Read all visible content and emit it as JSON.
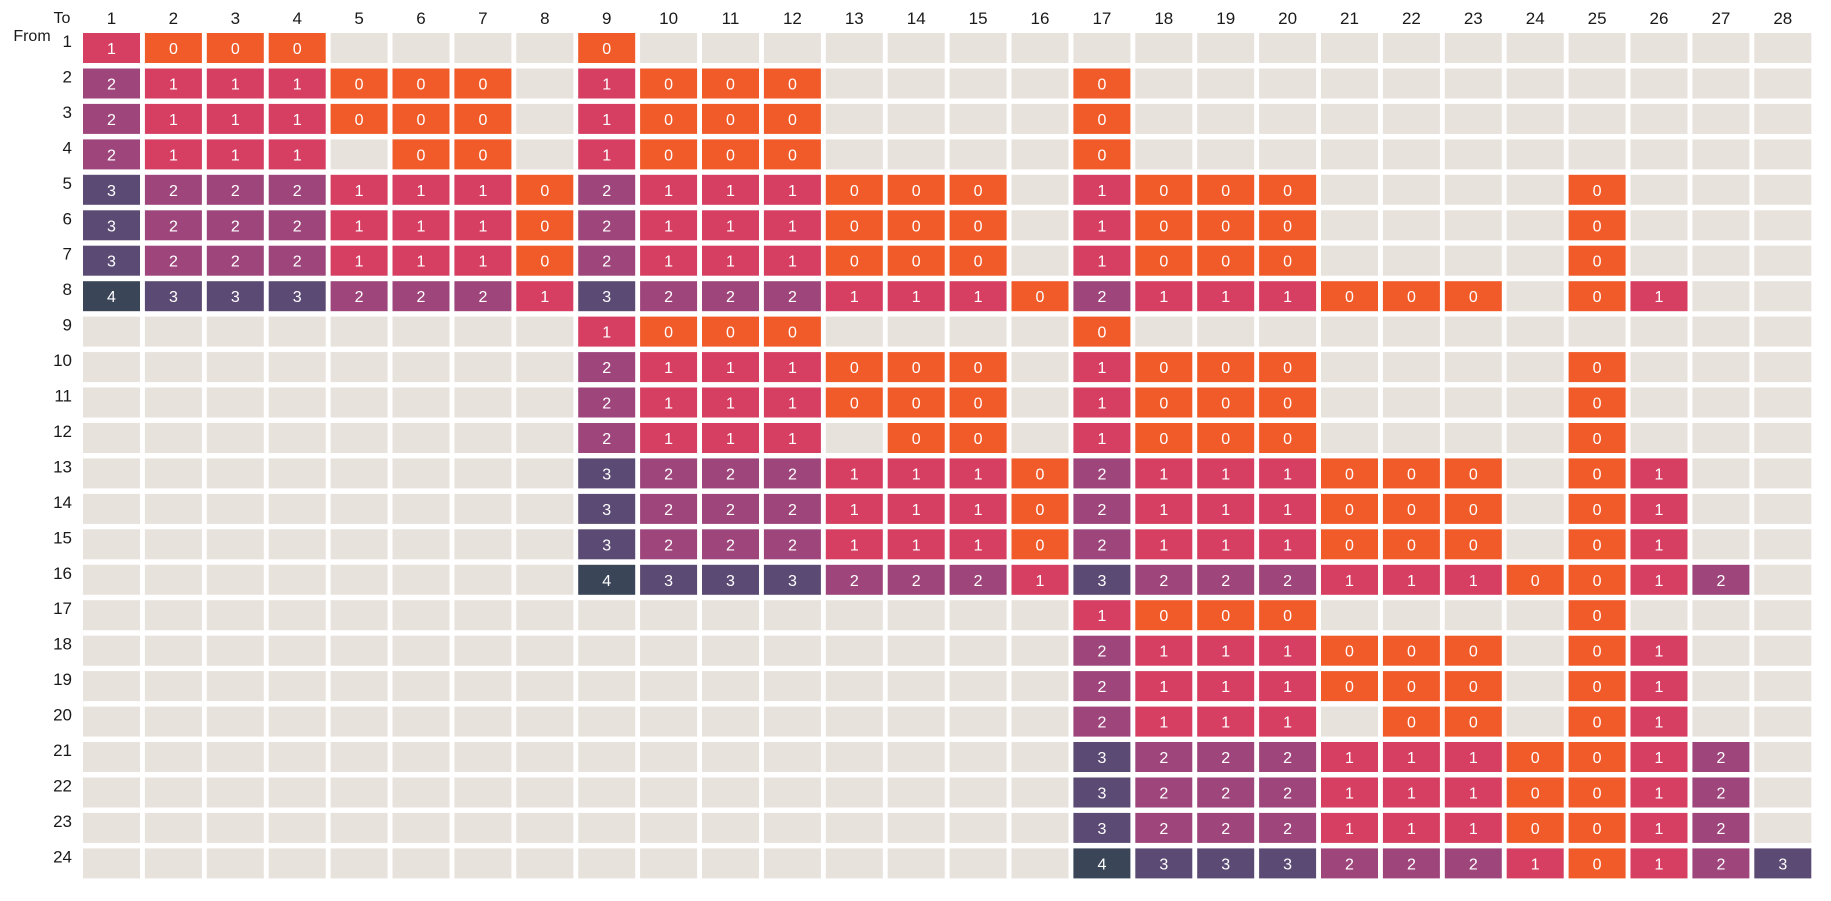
{
  "chart_data": {
    "type": "heatmap",
    "corner_labels": {
      "to": "To",
      "from": "From"
    },
    "x_labels": [
      "1",
      "2",
      "3",
      "4",
      "5",
      "6",
      "7",
      "8",
      "9",
      "10",
      "11",
      "12",
      "13",
      "14",
      "15",
      "16",
      "17",
      "18",
      "19",
      "20",
      "21",
      "22",
      "23",
      "24",
      "25",
      "26",
      "27",
      "28"
    ],
    "y_labels": [
      "1",
      "2",
      "3",
      "4",
      "5",
      "6",
      "7",
      "8",
      "9",
      "10",
      "11",
      "12",
      "13",
      "14",
      "15",
      "16",
      "17",
      "18",
      "19",
      "20",
      "21",
      "22",
      "23",
      "24"
    ],
    "empty_color": "#e8e2dc",
    "value_colors": {
      "0": "#f15a29",
      "1": "#d63e62",
      "2": "#9e467c",
      "3": "#5b4a73",
      "4": "#3a4558"
    },
    "values": [
      [
        1,
        0,
        0,
        0,
        null,
        null,
        null,
        null,
        0,
        null,
        null,
        null,
        null,
        null,
        null,
        null,
        null,
        null,
        null,
        null,
        null,
        null,
        null,
        null,
        null,
        null,
        null,
        null
      ],
      [
        2,
        1,
        1,
        1,
        0,
        0,
        0,
        null,
        1,
        0,
        0,
        0,
        null,
        null,
        null,
        null,
        0,
        null,
        null,
        null,
        null,
        null,
        null,
        null,
        null,
        null,
        null,
        null
      ],
      [
        2,
        1,
        1,
        1,
        0,
        0,
        0,
        null,
        1,
        0,
        0,
        0,
        null,
        null,
        null,
        null,
        0,
        null,
        null,
        null,
        null,
        null,
        null,
        null,
        null,
        null,
        null,
        null
      ],
      [
        2,
        1,
        1,
        1,
        null,
        0,
        0,
        null,
        1,
        0,
        0,
        0,
        null,
        null,
        null,
        null,
        0,
        null,
        null,
        null,
        null,
        null,
        null,
        null,
        null,
        null,
        null,
        null
      ],
      [
        3,
        2,
        2,
        2,
        1,
        1,
        1,
        0,
        2,
        1,
        1,
        1,
        0,
        0,
        0,
        null,
        1,
        0,
        0,
        0,
        null,
        null,
        null,
        null,
        0,
        null,
        null,
        null
      ],
      [
        3,
        2,
        2,
        2,
        1,
        1,
        1,
        0,
        2,
        1,
        1,
        1,
        0,
        0,
        0,
        null,
        1,
        0,
        0,
        0,
        null,
        null,
        null,
        null,
        0,
        null,
        null,
        null
      ],
      [
        3,
        2,
        2,
        2,
        1,
        1,
        1,
        0,
        2,
        1,
        1,
        1,
        0,
        0,
        0,
        null,
        1,
        0,
        0,
        0,
        null,
        null,
        null,
        null,
        0,
        null,
        null,
        null
      ],
      [
        4,
        3,
        3,
        3,
        2,
        2,
        2,
        1,
        3,
        2,
        2,
        2,
        1,
        1,
        1,
        0,
        2,
        1,
        1,
        1,
        0,
        0,
        0,
        null,
        0,
        1,
        null,
        null
      ],
      [
        null,
        null,
        null,
        null,
        null,
        null,
        null,
        null,
        1,
        0,
        0,
        0,
        null,
        null,
        null,
        null,
        0,
        null,
        null,
        null,
        null,
        null,
        null,
        null,
        null,
        null,
        null,
        null
      ],
      [
        null,
        null,
        null,
        null,
        null,
        null,
        null,
        null,
        2,
        1,
        1,
        1,
        0,
        0,
        0,
        null,
        1,
        0,
        0,
        0,
        null,
        null,
        null,
        null,
        0,
        null,
        null,
        null
      ],
      [
        null,
        null,
        null,
        null,
        null,
        null,
        null,
        null,
        2,
        1,
        1,
        1,
        0,
        0,
        0,
        null,
        1,
        0,
        0,
        0,
        null,
        null,
        null,
        null,
        0,
        null,
        null,
        null
      ],
      [
        null,
        null,
        null,
        null,
        null,
        null,
        null,
        null,
        2,
        1,
        1,
        1,
        null,
        0,
        0,
        null,
        1,
        0,
        0,
        0,
        null,
        null,
        null,
        null,
        0,
        null,
        null,
        null
      ],
      [
        null,
        null,
        null,
        null,
        null,
        null,
        null,
        null,
        3,
        2,
        2,
        2,
        1,
        1,
        1,
        0,
        2,
        1,
        1,
        1,
        0,
        0,
        0,
        null,
        0,
        1,
        null,
        null
      ],
      [
        null,
        null,
        null,
        null,
        null,
        null,
        null,
        null,
        3,
        2,
        2,
        2,
        1,
        1,
        1,
        0,
        2,
        1,
        1,
        1,
        0,
        0,
        0,
        null,
        0,
        1,
        null,
        null
      ],
      [
        null,
        null,
        null,
        null,
        null,
        null,
        null,
        null,
        3,
        2,
        2,
        2,
        1,
        1,
        1,
        0,
        2,
        1,
        1,
        1,
        0,
        0,
        0,
        null,
        0,
        1,
        null,
        null
      ],
      [
        null,
        null,
        null,
        null,
        null,
        null,
        null,
        null,
        4,
        3,
        3,
        3,
        2,
        2,
        2,
        1,
        3,
        2,
        2,
        2,
        1,
        1,
        1,
        0,
        0,
        1,
        2,
        null
      ],
      [
        null,
        null,
        null,
        null,
        null,
        null,
        null,
        null,
        null,
        null,
        null,
        null,
        null,
        null,
        null,
        null,
        1,
        0,
        0,
        0,
        null,
        null,
        null,
        null,
        0,
        null,
        null,
        null
      ],
      [
        null,
        null,
        null,
        null,
        null,
        null,
        null,
        null,
        null,
        null,
        null,
        null,
        null,
        null,
        null,
        null,
        2,
        1,
        1,
        1,
        0,
        0,
        0,
        null,
        0,
        1,
        null,
        null
      ],
      [
        null,
        null,
        null,
        null,
        null,
        null,
        null,
        null,
        null,
        null,
        null,
        null,
        null,
        null,
        null,
        null,
        2,
        1,
        1,
        1,
        0,
        0,
        0,
        null,
        0,
        1,
        null,
        null
      ],
      [
        null,
        null,
        null,
        null,
        null,
        null,
        null,
        null,
        null,
        null,
        null,
        null,
        null,
        null,
        null,
        null,
        2,
        1,
        1,
        1,
        null,
        0,
        0,
        null,
        0,
        1,
        null,
        null
      ],
      [
        null,
        null,
        null,
        null,
        null,
        null,
        null,
        null,
        null,
        null,
        null,
        null,
        null,
        null,
        null,
        null,
        3,
        2,
        2,
        2,
        1,
        1,
        1,
        0,
        0,
        1,
        2,
        null
      ],
      [
        null,
        null,
        null,
        null,
        null,
        null,
        null,
        null,
        null,
        null,
        null,
        null,
        null,
        null,
        null,
        null,
        3,
        2,
        2,
        2,
        1,
        1,
        1,
        0,
        0,
        1,
        2,
        null
      ],
      [
        null,
        null,
        null,
        null,
        null,
        null,
        null,
        null,
        null,
        null,
        null,
        null,
        null,
        null,
        null,
        null,
        3,
        2,
        2,
        2,
        1,
        1,
        1,
        0,
        0,
        1,
        2,
        null
      ],
      [
        null,
        null,
        null,
        null,
        null,
        null,
        null,
        null,
        null,
        null,
        null,
        null,
        null,
        null,
        null,
        null,
        4,
        3,
        3,
        3,
        2,
        2,
        2,
        1,
        0,
        1,
        2,
        3
      ]
    ]
  }
}
